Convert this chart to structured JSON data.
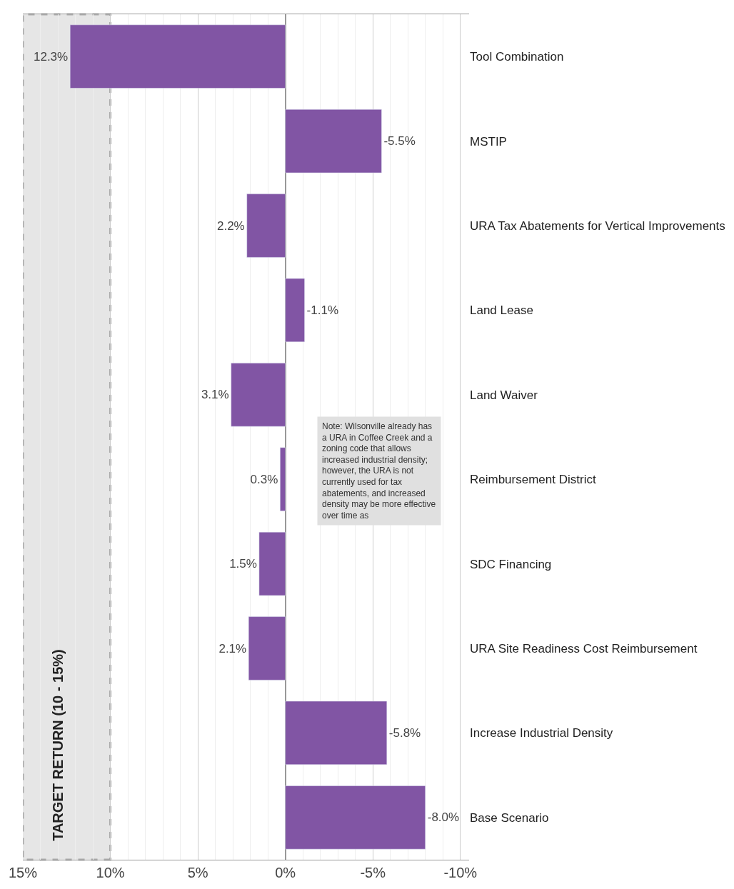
{
  "chart_data": {
    "type": "bar",
    "orientation": "horizontal",
    "categories": [
      "Tool Combination",
      "MSTIP",
      "URA Tax Abatements for Vertical Improvements",
      "Land Lease",
      "Land Waiver",
      "Reimbursement District",
      "SDC Financing",
      "URA Site Readiness Cost Reimbursement",
      "Increase Industrial Density",
      "Base Scenario"
    ],
    "values": [
      12.3,
      -5.5,
      2.2,
      -1.1,
      3.1,
      0.3,
      1.5,
      2.1,
      -5.8,
      -8.0
    ],
    "value_labels": [
      "12.3%",
      "-5.5%",
      "2.2%",
      "-1.1%",
      "3.1%",
      "0.3%",
      "1.5%",
      "2.1%",
      "-5.8%",
      "-8.0%"
    ],
    "color": "#8155a4",
    "xlim": [
      15,
      -10.5
    ],
    "xticks": [
      {
        "value": 15,
        "label": "15%"
      },
      {
        "value": 10,
        "label": "10%"
      },
      {
        "value": 5,
        "label": "5%"
      },
      {
        "value": 0,
        "label": "0%"
      },
      {
        "value": -5,
        "label": "-5%"
      },
      {
        "value": -10,
        "label": "-10%"
      }
    ],
    "grid": "x",
    "bands": [
      {
        "axis": "x",
        "from": 10,
        "to": 15,
        "label": "TARGET RETURN (10 - 15%)",
        "color": "#e6e6e6"
      }
    ],
    "annotations": [
      "Note: Wilsonville already has a URA in Coffee Creek and a zoning code that allows increased industrial density; however, the URA is not currently used for tax abatements, and increased density may be more effective over time as"
    ]
  }
}
